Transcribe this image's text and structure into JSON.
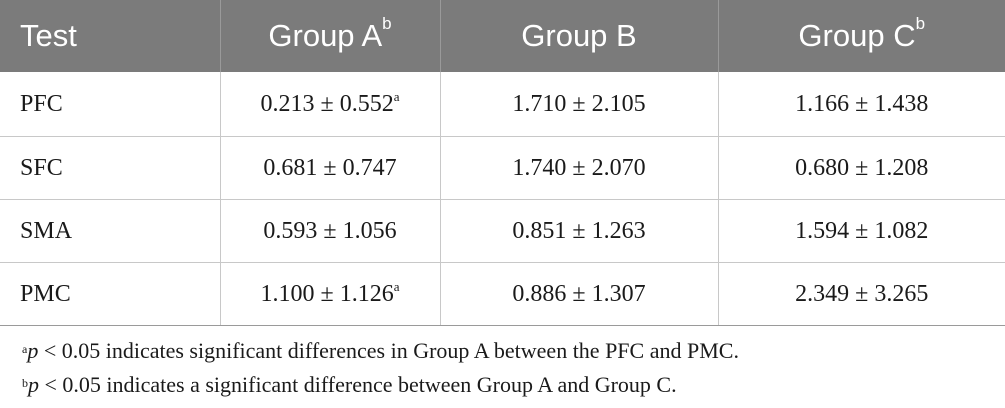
{
  "table": {
    "headers": [
      {
        "label": "Test",
        "sup": ""
      },
      {
        "label": "Group A",
        "sup": "b"
      },
      {
        "label": "Group B",
        "sup": ""
      },
      {
        "label": "Group C",
        "sup": "b"
      }
    ],
    "rows": [
      {
        "test": "PFC",
        "a": "0.213 ± 0.552",
        "a_sup": "a",
        "b": "1.710 ± 2.105",
        "c": "1.166 ± 1.438"
      },
      {
        "test": "SFC",
        "a": "0.681 ± 0.747",
        "a_sup": "",
        "b": "1.740 ± 2.070",
        "c": "0.680 ± 1.208"
      },
      {
        "test": "SMA",
        "a": "0.593 ± 1.056",
        "a_sup": "",
        "b": "0.851 ± 1.263",
        "c": "1.594 ± 1.082"
      },
      {
        "test": "PMC",
        "a": "1.100 ± 1.126",
        "a_sup": "a",
        "b": "0.886 ± 1.307",
        "c": "2.349 ± 3.265"
      }
    ]
  },
  "footnotes": [
    {
      "mark": "a",
      "symbol": "p",
      "text": " < 0.05 indicates significant differences in Group A between the PFC and PMC."
    },
    {
      "mark": "b",
      "symbol": "p",
      "text": " < 0.05 indicates a significant difference between Group A and Group C."
    }
  ],
  "colors": {
    "header_bg": "#7b7b7b",
    "header_text": "#ffffff",
    "grid": "#c8c8c8"
  }
}
